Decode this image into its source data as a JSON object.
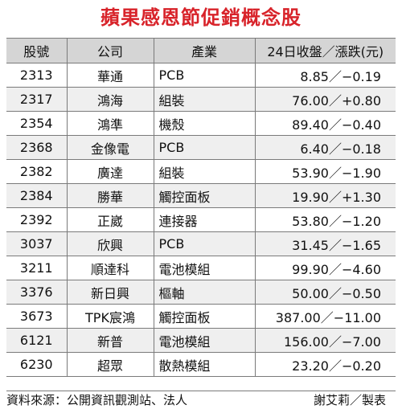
{
  "title": "蘋果感恩節促銷概念股",
  "headers": {
    "code": "股號",
    "company": "公司",
    "industry": "產業",
    "price": "24日收盤／漲跌(元)"
  },
  "rows": [
    {
      "code": "2313",
      "company": "華通",
      "industry": "PCB",
      "price": "8.85／−0.19"
    },
    {
      "code": "2317",
      "company": "鴻海",
      "industry": "組裝",
      "price": "76.00／+0.80"
    },
    {
      "code": "2354",
      "company": "鴻準",
      "industry": "機殼",
      "price": "89.40／−0.40"
    },
    {
      "code": "2368",
      "company": "金像電",
      "industry": "PCB",
      "price": "6.40／−0.18"
    },
    {
      "code": "2382",
      "company": "廣達",
      "industry": "組裝",
      "price": "53.90／−1.90"
    },
    {
      "code": "2384",
      "company": "勝華",
      "industry": "觸控面板",
      "price": "19.90／+1.30"
    },
    {
      "code": "2392",
      "company": "正崴",
      "industry": "連接器",
      "price": "53.80／−1.20"
    },
    {
      "code": "3037",
      "company": "欣興",
      "industry": "PCB",
      "price": "31.45／−1.65"
    },
    {
      "code": "3211",
      "company": "順達科",
      "industry": "電池模組",
      "price": "99.90／−4.60"
    },
    {
      "code": "3376",
      "company": "新日興",
      "industry": "樞軸",
      "price": "50.00／−0.50"
    },
    {
      "code": "3673",
      "company": "TPK宸鴻",
      "industry": "觸控面板",
      "price": "387.00／−11.00"
    },
    {
      "code": "6121",
      "company": "新普",
      "industry": "電池模組",
      "price": "156.00／−7.00"
    },
    {
      "code": "6230",
      "company": "超眾",
      "industry": "散熱模組",
      "price": "23.20／−0.20"
    }
  ],
  "footer": {
    "source": "資料來源：公開資訊觀測站、法人",
    "credit": "謝艾莉／製表"
  },
  "colors": {
    "title": "#d8232a",
    "header_bg": "#d5d5d5",
    "stripe_bg": "#efefef"
  }
}
